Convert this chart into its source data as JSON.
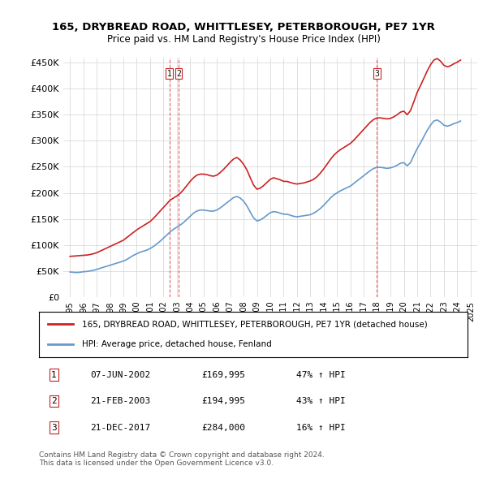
{
  "title": "165, DRYBREAD ROAD, WHITTLESEY, PETERBOROUGH, PE7 1YR",
  "subtitle": "Price paid vs. HM Land Registry's House Price Index (HPI)",
  "ylabel_ticks": [
    "£0",
    "£50K",
    "£100K",
    "£150K",
    "£200K",
    "£250K",
    "£300K",
    "£350K",
    "£400K",
    "£450K"
  ],
  "ytick_values": [
    0,
    50000,
    100000,
    150000,
    200000,
    250000,
    300000,
    350000,
    400000,
    450000
  ],
  "ylim": [
    0,
    460000
  ],
  "xlim_start": 1994.5,
  "xlim_end": 2025.5,
  "hpi_line_color": "#6699cc",
  "price_line_color": "#cc2222",
  "marker_line_color": "#cc2222",
  "sale_dates": [
    2002.44,
    2003.13,
    2017.97
  ],
  "sale_prices": [
    169995,
    194995,
    284000
  ],
  "sale_labels": [
    "1",
    "2",
    "3"
  ],
  "legend_label_red": "165, DRYBREAD ROAD, WHITTLESEY, PETERBOROUGH, PE7 1YR (detached house)",
  "legend_label_blue": "HPI: Average price, detached house, Fenland",
  "table_rows": [
    [
      "1",
      "07-JUN-2002",
      "£169,995",
      "47% ↑ HPI"
    ],
    [
      "2",
      "21-FEB-2003",
      "£194,995",
      "43% ↑ HPI"
    ],
    [
      "3",
      "21-DEC-2017",
      "£284,000",
      "16% ↑ HPI"
    ]
  ],
  "footnote1": "Contains HM Land Registry data © Crown copyright and database right 2024.",
  "footnote2": "This data is licensed under the Open Government Licence v3.0.",
  "hpi_data_x": [
    1995.0,
    1995.25,
    1995.5,
    1995.75,
    1996.0,
    1996.25,
    1996.5,
    1996.75,
    1997.0,
    1997.25,
    1997.5,
    1997.75,
    1998.0,
    1998.25,
    1998.5,
    1998.75,
    1999.0,
    1999.25,
    1999.5,
    1999.75,
    2000.0,
    2000.25,
    2000.5,
    2000.75,
    2001.0,
    2001.25,
    2001.5,
    2001.75,
    2002.0,
    2002.25,
    2002.5,
    2002.75,
    2003.0,
    2003.25,
    2003.5,
    2003.75,
    2004.0,
    2004.25,
    2004.5,
    2004.75,
    2005.0,
    2005.25,
    2005.5,
    2005.75,
    2006.0,
    2006.25,
    2006.5,
    2006.75,
    2007.0,
    2007.25,
    2007.5,
    2007.75,
    2008.0,
    2008.25,
    2008.5,
    2008.75,
    2009.0,
    2009.25,
    2009.5,
    2009.75,
    2010.0,
    2010.25,
    2010.5,
    2010.75,
    2011.0,
    2011.25,
    2011.5,
    2011.75,
    2012.0,
    2012.25,
    2012.5,
    2012.75,
    2013.0,
    2013.25,
    2013.5,
    2013.75,
    2014.0,
    2014.25,
    2014.5,
    2014.75,
    2015.0,
    2015.25,
    2015.5,
    2015.75,
    2016.0,
    2016.25,
    2016.5,
    2016.75,
    2017.0,
    2017.25,
    2017.5,
    2017.75,
    2018.0,
    2018.25,
    2018.5,
    2018.75,
    2019.0,
    2019.25,
    2019.5,
    2019.75,
    2020.0,
    2020.25,
    2020.5,
    2020.75,
    2021.0,
    2021.25,
    2021.5,
    2021.75,
    2022.0,
    2022.25,
    2022.5,
    2022.75,
    2023.0,
    2023.25,
    2023.5,
    2023.75,
    2024.0,
    2024.25
  ],
  "hpi_data_y": [
    48000,
    47500,
    47000,
    47500,
    48500,
    49000,
    50000,
    51000,
    53000,
    55000,
    57000,
    59000,
    61000,
    63000,
    65000,
    67000,
    69000,
    72000,
    76000,
    80000,
    83000,
    86000,
    88000,
    90000,
    93000,
    97000,
    102000,
    107000,
    113000,
    119000,
    125000,
    130000,
    134000,
    138000,
    143000,
    149000,
    155000,
    161000,
    165000,
    167000,
    167000,
    166000,
    165000,
    165000,
    167000,
    171000,
    176000,
    181000,
    186000,
    191000,
    193000,
    190000,
    184000,
    175000,
    163000,
    152000,
    146000,
    148000,
    152000,
    157000,
    162000,
    164000,
    163000,
    161000,
    159000,
    159000,
    157000,
    155000,
    154000,
    155000,
    156000,
    157000,
    158000,
    161000,
    165000,
    170000,
    176000,
    183000,
    190000,
    196000,
    200000,
    204000,
    207000,
    210000,
    213000,
    218000,
    223000,
    228000,
    233000,
    238000,
    243000,
    247000,
    249000,
    249000,
    248000,
    247000,
    248000,
    250000,
    253000,
    257000,
    258000,
    252000,
    258000,
    272000,
    285000,
    296000,
    308000,
    320000,
    330000,
    338000,
    340000,
    336000,
    330000,
    328000,
    330000,
    333000,
    335000,
    338000
  ],
  "price_data_x": [
    1995.0,
    1995.25,
    1995.5,
    1995.75,
    1996.0,
    1996.25,
    1996.5,
    1996.75,
    1997.0,
    1997.25,
    1997.5,
    1997.75,
    1998.0,
    1998.25,
    1998.5,
    1998.75,
    1999.0,
    1999.25,
    1999.5,
    1999.75,
    2000.0,
    2000.25,
    2000.5,
    2000.75,
    2001.0,
    2001.25,
    2001.5,
    2001.75,
    2002.0,
    2002.25,
    2002.5,
    2002.75,
    2003.0,
    2003.25,
    2003.5,
    2003.75,
    2004.0,
    2004.25,
    2004.5,
    2004.75,
    2005.0,
    2005.25,
    2005.5,
    2005.75,
    2006.0,
    2006.25,
    2006.5,
    2006.75,
    2007.0,
    2007.25,
    2007.5,
    2007.75,
    2008.0,
    2008.25,
    2008.5,
    2008.75,
    2009.0,
    2009.25,
    2009.5,
    2009.75,
    2010.0,
    2010.25,
    2010.5,
    2010.75,
    2011.0,
    2011.25,
    2011.5,
    2011.75,
    2012.0,
    2012.25,
    2012.5,
    2012.75,
    2013.0,
    2013.25,
    2013.5,
    2013.75,
    2014.0,
    2014.25,
    2014.5,
    2014.75,
    2015.0,
    2015.25,
    2015.5,
    2015.75,
    2016.0,
    2016.25,
    2016.5,
    2016.75,
    2017.0,
    2017.25,
    2017.5,
    2017.75,
    2018.0,
    2018.25,
    2018.5,
    2018.75,
    2019.0,
    2019.25,
    2019.5,
    2019.75,
    2020.0,
    2020.25,
    2020.5,
    2020.75,
    2021.0,
    2021.25,
    2021.5,
    2021.75,
    2022.0,
    2022.25,
    2022.5,
    2022.75,
    2023.0,
    2023.25,
    2023.5,
    2023.75,
    2024.0,
    2024.25
  ],
  "price_data_y": [
    78000,
    78500,
    79000,
    79500,
    80000,
    80500,
    81500,
    83000,
    85000,
    88000,
    91000,
    94000,
    97000,
    100000,
    103000,
    106000,
    109000,
    114000,
    119000,
    124000,
    129000,
    133000,
    137000,
    141000,
    145000,
    151000,
    158000,
    165000,
    172000,
    179000,
    186000,
    190000,
    194000,
    199000,
    206000,
    214000,
    222000,
    229000,
    234000,
    236000,
    236000,
    235000,
    233000,
    232000,
    234000,
    239000,
    245000,
    252000,
    259000,
    265000,
    268000,
    263000,
    255000,
    244000,
    229000,
    215000,
    207000,
    209000,
    214000,
    220000,
    226000,
    229000,
    227000,
    225000,
    222000,
    222000,
    220000,
    218000,
    217000,
    218000,
    219000,
    221000,
    223000,
    226000,
    231000,
    238000,
    246000,
    255000,
    264000,
    272000,
    278000,
    283000,
    287000,
    291000,
    295000,
    301000,
    308000,
    315000,
    322000,
    329000,
    336000,
    341000,
    344000,
    344000,
    343000,
    342000,
    343000,
    346000,
    350000,
    355000,
    357000,
    350000,
    358000,
    375000,
    393000,
    406000,
    420000,
    434000,
    446000,
    455000,
    458000,
    453000,
    445000,
    442000,
    444000,
    448000,
    451000,
    455000
  ]
}
